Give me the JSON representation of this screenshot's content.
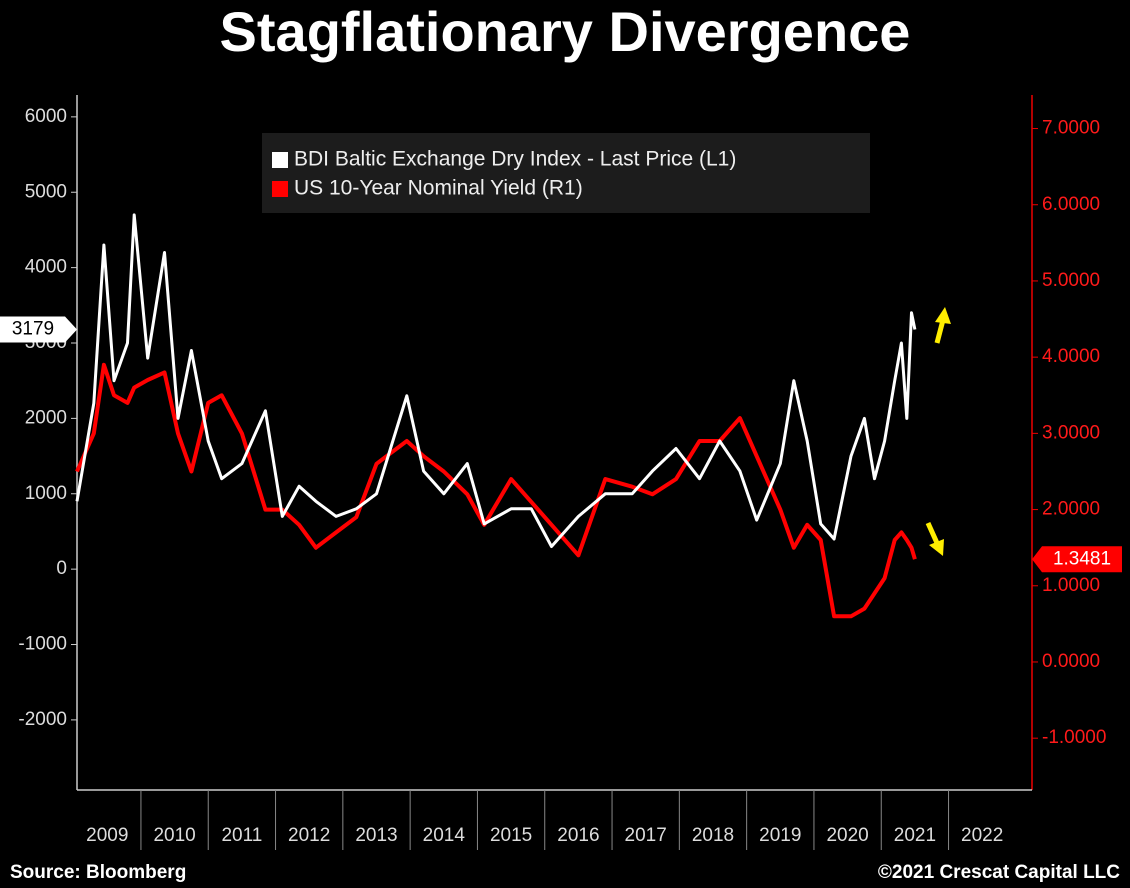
{
  "chart_data": {
    "type": "line",
    "title": "Stagflationary Divergence",
    "source": "Source: Bloomberg",
    "copyright": "©2021 Crescat Capital LLC",
    "x": [
      2009.05,
      2009.3,
      2009.45,
      2009.6,
      2009.8,
      2009.9,
      2010.1,
      2010.35,
      2010.55,
      2010.75,
      2011.0,
      2011.2,
      2011.5,
      2011.85,
      2012.1,
      2012.35,
      2012.6,
      2012.9,
      2013.2,
      2013.5,
      2013.95,
      2014.2,
      2014.5,
      2014.85,
      2015.1,
      2015.5,
      2015.8,
      2016.1,
      2016.5,
      2016.9,
      2017.3,
      2017.6,
      2017.95,
      2018.3,
      2018.6,
      2018.9,
      2019.15,
      2019.5,
      2019.7,
      2019.9,
      2020.1,
      2020.3,
      2020.55,
      2020.75,
      2020.9,
      2021.05,
      2021.2,
      2021.3,
      2021.38,
      2021.45,
      2021.5
    ],
    "series": [
      {
        "name": "BDI Baltic Exchange Dry Index - Last Price (L1)",
        "color": "#ffffff",
        "axis": "y",
        "values": [
          900,
          2200,
          4300,
          2500,
          3000,
          4700,
          2800,
          4200,
          2000,
          2900,
          1700,
          1200,
          1400,
          2100,
          700,
          1100,
          900,
          700,
          800,
          1000,
          2300,
          1300,
          1000,
          1400,
          600,
          800,
          800,
          300,
          700,
          1000,
          1000,
          1300,
          1600,
          1200,
          1700,
          1300,
          650,
          1400,
          2500,
          1700,
          600,
          400,
          1500,
          2000,
          1200,
          1700,
          2500,
          3000,
          2000,
          3400,
          3179
        ]
      },
      {
        "name": "US 10-Year Nominal Yield (R1)",
        "color": "#ff0000",
        "axis": "y2",
        "values": [
          2.5,
          3.0,
          3.9,
          3.5,
          3.4,
          3.6,
          3.7,
          3.8,
          3.0,
          2.5,
          3.4,
          3.5,
          3.0,
          2.0,
          2.0,
          1.8,
          1.5,
          1.7,
          1.9,
          2.6,
          2.9,
          2.7,
          2.5,
          2.2,
          1.8,
          2.4,
          2.1,
          1.8,
          1.4,
          2.4,
          2.3,
          2.2,
          2.4,
          2.9,
          2.9,
          3.2,
          2.7,
          2.0,
          1.5,
          1.8,
          1.6,
          0.6,
          0.6,
          0.7,
          0.9,
          1.1,
          1.6,
          1.7,
          1.6,
          1.5,
          1.3481
        ]
      }
    ],
    "xlim": [
      2009.05,
      2023.24
    ],
    "xticks": [
      {
        "value": 2009,
        "label": "2009"
      },
      {
        "value": 2010,
        "label": "2010"
      },
      {
        "value": 2011,
        "label": "2011"
      },
      {
        "value": 2012,
        "label": "2012"
      },
      {
        "value": 2013,
        "label": "2013"
      },
      {
        "value": 2014,
        "label": "2014"
      },
      {
        "value": 2015,
        "label": "2015"
      },
      {
        "value": 2016,
        "label": "2016"
      },
      {
        "value": 2017,
        "label": "2017"
      },
      {
        "value": 2018,
        "label": "2018"
      },
      {
        "value": 2019,
        "label": "2019"
      },
      {
        "value": 2020,
        "label": "2020"
      },
      {
        "value": 2021,
        "label": "2021"
      },
      {
        "value": 2022,
        "label": "2022"
      }
    ],
    "ylim": [
      -2930,
      6290
    ],
    "yticks": [
      -2000,
      -1000,
      0,
      1000,
      2000,
      3000,
      4000,
      5000,
      6000
    ],
    "y2lim": [
      -1.68,
      7.44
    ],
    "y2ticks": [
      {
        "value": -1,
        "label": "-1.0000"
      },
      {
        "value": 0,
        "label": "0.0000"
      },
      {
        "value": 1,
        "label": "1.0000"
      },
      {
        "value": 2,
        "label": "2.0000"
      },
      {
        "value": 3,
        "label": "3.0000"
      },
      {
        "value": 4,
        "label": "4.0000"
      },
      {
        "value": 5,
        "label": "5.0000"
      },
      {
        "value": 6,
        "label": "6.0000"
      },
      {
        "value": 7,
        "label": "7.0000"
      }
    ],
    "legend": "top"
  }
}
